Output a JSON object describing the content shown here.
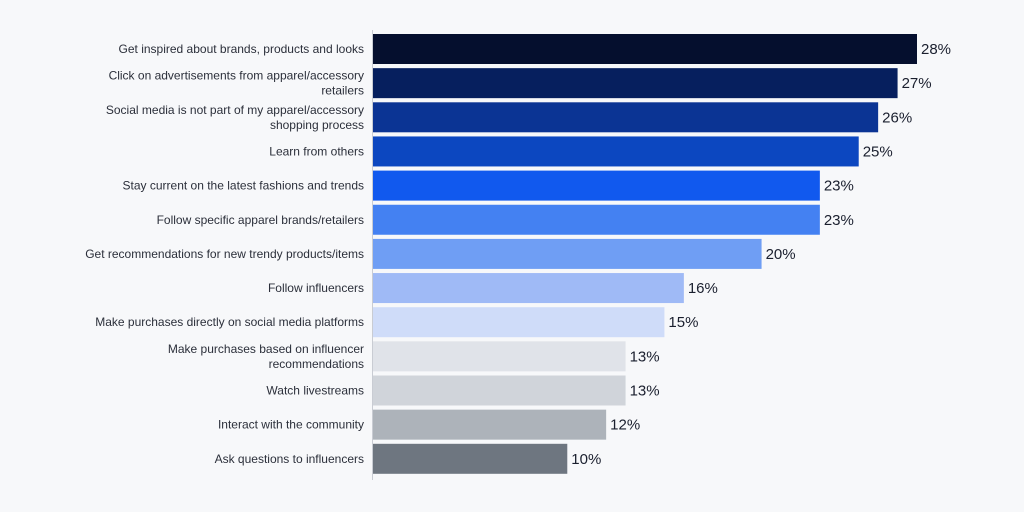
{
  "chart_data": {
    "type": "bar",
    "orientation": "horizontal",
    "categories": [
      [
        "Get inspired about brands, products and looks"
      ],
      [
        "Click on advertisements from apparel/accessory",
        "retailers"
      ],
      [
        "Social media is not part of my apparel/accessory",
        "shopping process"
      ],
      [
        "Learn from others"
      ],
      [
        "Stay current on the latest fashions and trends"
      ],
      [
        "Follow specific apparel brands/retailers"
      ],
      [
        "Get recommendations for new trendy products/items"
      ],
      [
        "Follow influencers"
      ],
      [
        "Make purchases directly on social media platforms"
      ],
      [
        "Make purchases based on influencer",
        "recommendations"
      ],
      [
        "Watch livestreams"
      ],
      [
        "Interact with the community"
      ],
      [
        "Ask questions to influencers"
      ]
    ],
    "values": [
      28,
      27,
      26,
      25,
      23,
      23,
      20,
      16,
      15,
      13,
      13,
      12,
      10
    ],
    "value_labels": [
      "28%",
      "27%",
      "26%",
      "25%",
      "23%",
      "23%",
      "20%",
      "16%",
      "15%",
      "13%",
      "13%",
      "12%",
      "10%"
    ],
    "colors": [
      "#050f2e",
      "#061f5e",
      "#0b3494",
      "#0c47c0",
      "#1159ee",
      "#4481f2",
      "#6f9ef4",
      "#9fbaf6",
      "#cfdcf9",
      "#e0e3e9",
      "#d0d4da",
      "#adb3ba",
      "#6e7680"
    ],
    "xlim": [
      0,
      28
    ],
    "grid": false,
    "legend": "none"
  }
}
